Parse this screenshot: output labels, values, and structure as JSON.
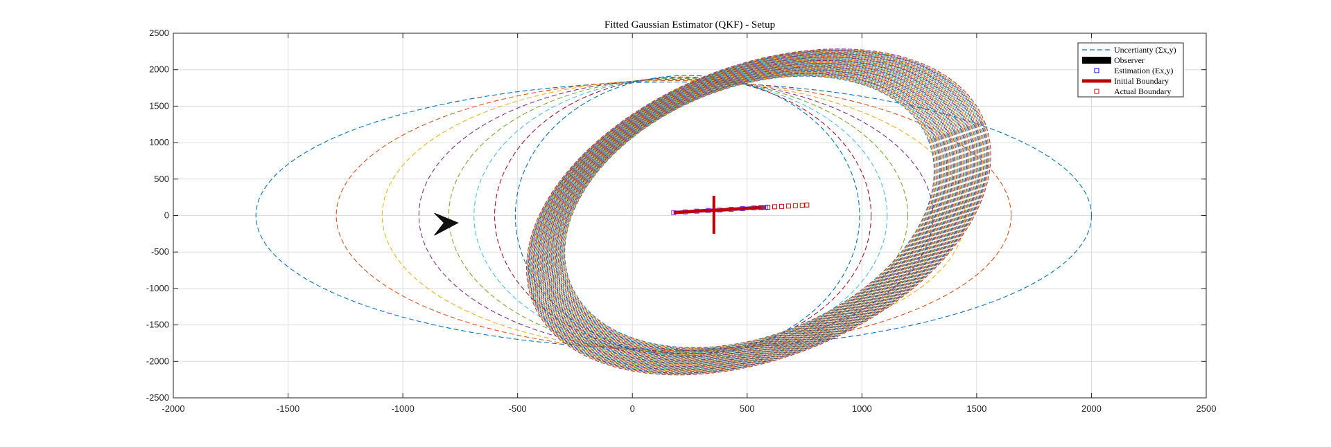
{
  "chart_data": {
    "type": "scatter",
    "title": "Fitted Gaussian Estimator (QKF) - Setup",
    "xlabel": "",
    "ylabel": "",
    "xlim": [
      -2000,
      2500
    ],
    "ylim": [
      -2500,
      2500
    ],
    "grid": true,
    "x_ticks": [
      "-2000",
      "-1500",
      "-1000",
      "-500",
      "0",
      "500",
      "1000",
      "1500",
      "2000",
      "2500"
    ],
    "y_ticks": [
      "2500",
      "2000",
      "1500",
      "1000",
      "500",
      "0",
      "-500",
      "-1000",
      "-1500",
      "-2000",
      "-2500"
    ],
    "legend": {
      "location": "top-right",
      "entries": [
        {
          "label": "Uncertianty (Σx,y)",
          "style": "dashed-line",
          "color": "#0072BD"
        },
        {
          "label": "Observer",
          "style": "filled-patch",
          "color": "#000000"
        },
        {
          "label": "Estimation (Ex,y)",
          "style": "square-marker",
          "color": "#0000FF"
        },
        {
          "label": "Initial Boundary",
          "style": "thick-line",
          "color": "#C00000"
        },
        {
          "label": "Actual Boundary",
          "style": "square-marker",
          "color": "#D00000"
        }
      ]
    },
    "series": [
      {
        "name": "Uncertianty (Σx,y)",
        "kind": "covariance-ellipses",
        "colors": [
          "#0072BD",
          "#D95319",
          "#EDB120",
          "#7E2F8E",
          "#77AC30",
          "#4DBEEE",
          "#A2142F"
        ],
        "ellipses": [
          {
            "cx": 180,
            "cy": 0,
            "rx": 1820,
            "ry": 1830,
            "angle_deg": 0
          },
          {
            "cx": 180,
            "cy": 0,
            "rx": 1470,
            "ry": 1850,
            "angle_deg": 0
          },
          {
            "cx": 180,
            "cy": 0,
            "rx": 1270,
            "ry": 1860,
            "angle_deg": 0
          },
          {
            "cx": 190,
            "cy": 0,
            "rx": 1120,
            "ry": 1870,
            "angle_deg": 0
          },
          {
            "cx": 200,
            "cy": 0,
            "rx": 1000,
            "ry": 1880,
            "angle_deg": 0
          },
          {
            "cx": 210,
            "cy": 0,
            "rx": 900,
            "ry": 1890,
            "angle_deg": 0
          },
          {
            "cx": 220,
            "cy": 0,
            "rx": 820,
            "ry": 1900,
            "angle_deg": 0
          },
          {
            "cx": 240,
            "cy": 0,
            "rx": 750,
            "ry": 1920,
            "angle_deg": 0
          }
        ],
        "ring": {
          "cx": 530,
          "cy": 50,
          "rx_outer": 1060,
          "ry_outer": 2000,
          "rx_inner": 840,
          "ry_inner": 1700,
          "angle_deg": -22
        }
      },
      {
        "name": "Observer",
        "kind": "arrowhead",
        "x": -760,
        "y": -100,
        "heading_deg": 0
      },
      {
        "name": "Estimation (Ex,y)",
        "kind": "markers",
        "x": [
          180,
          230,
          280,
          330,
          380,
          430,
          480,
          530,
          580
        ],
        "y": [
          40,
          50,
          60,
          70,
          75,
          85,
          95,
          105,
          110
        ]
      },
      {
        "name": "Initial Boundary",
        "kind": "cross",
        "center": [
          355,
          50
        ],
        "segments": [
          {
            "x": [
              355,
              355
            ],
            "y": [
              270,
              -250
            ]
          },
          {
            "x": [
              180,
              560
            ],
            "y": [
              40,
              110
            ]
          }
        ]
      },
      {
        "name": "Actual Boundary",
        "kind": "markers",
        "x": [
          560,
          590,
          620,
          650,
          680,
          710,
          740,
          760
        ],
        "y": [
          110,
          115,
          120,
          125,
          130,
          135,
          140,
          145
        ]
      }
    ]
  }
}
